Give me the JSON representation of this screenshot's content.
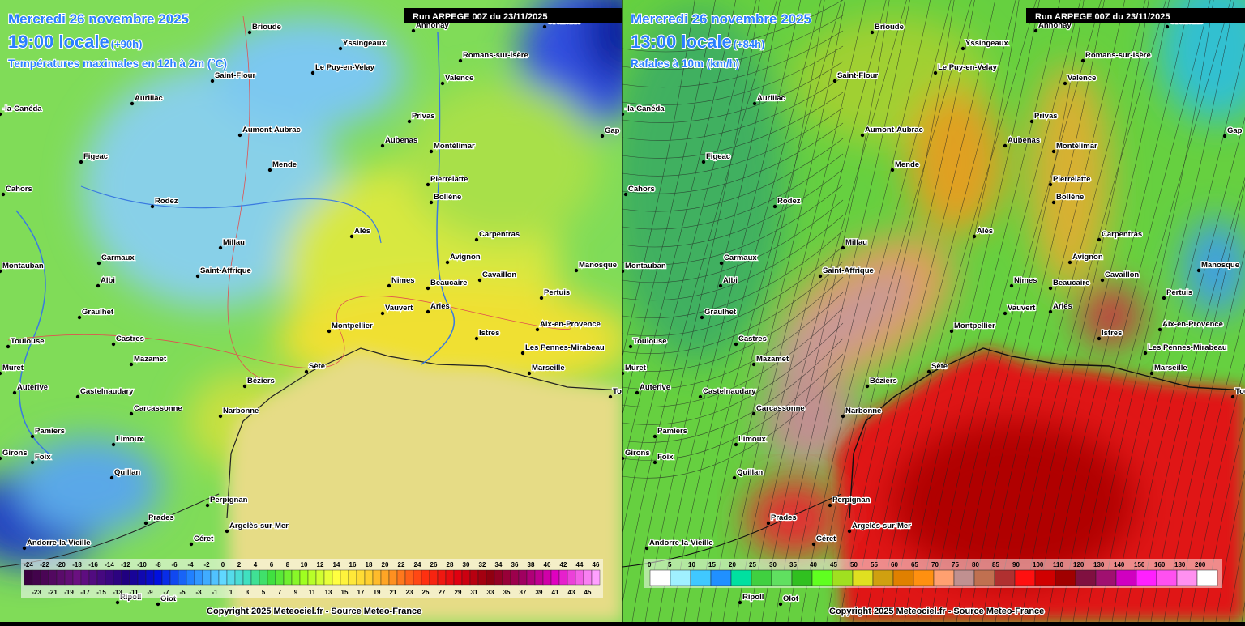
{
  "panels": [
    {
      "date": "Mercredi 26 novembre 2025",
      "time": "19:00 locale",
      "lead": "(+90h)",
      "field": "Températures maximales en 12h à 2m (°C)",
      "run": "Run ARPEGE 00Z du 23/11/2025",
      "copyright": "Copyright 2025 Meteociel.fr - Source Meteo-France",
      "legend_top": [
        -24,
        -22,
        -20,
        -18,
        -16,
        -14,
        -12,
        -10,
        -8,
        -6,
        -4,
        -2,
        0,
        2,
        4,
        6,
        8,
        10,
        12,
        14,
        16,
        18,
        20,
        22,
        24,
        26,
        28,
        30,
        32,
        34,
        36,
        38,
        40,
        42,
        44,
        46
      ],
      "legend_bottom": [
        -23,
        -21,
        -19,
        -17,
        -15,
        -13,
        -11,
        -9,
        -7,
        -5,
        -3,
        -1,
        1,
        3,
        5,
        7,
        9,
        11,
        13,
        15,
        17,
        19,
        21,
        23,
        25,
        27,
        29,
        31,
        33,
        35,
        37,
        39,
        41,
        43,
        45
      ]
    },
    {
      "date": "Mercredi 26 novembre 2025",
      "time": "13:00 locale",
      "lead": "(+84h)",
      "field": "Rafales à 10m (km/h)",
      "run": "Run ARPEGE 00Z du 23/11/2025",
      "copyright": "Copyright 2025 Meteociel.fr - Source Meteo-France",
      "legend": [
        0,
        5,
        10,
        15,
        20,
        25,
        30,
        35,
        40,
        45,
        50,
        55,
        60,
        65,
        70,
        75,
        80,
        85,
        90,
        100,
        110,
        120,
        130,
        140,
        150,
        160,
        180,
        200
      ]
    }
  ],
  "cities": [
    "Brioude",
    "Yssingeaux",
    "Annonay",
    "Grenoble",
    "Romans-sur-Isère",
    "Saint-Flour",
    "Le Puy-en-Velay",
    "Valence",
    "Aurillac",
    "-la-Canéda",
    "Privas",
    "Aumont-Aubrac",
    "Gap",
    "Aubenas",
    "Figeac",
    "Montélimar",
    "Mende",
    "Pierrelatte",
    "Cahors",
    "Rodez",
    "Bollène",
    "Alès",
    "Carpentras",
    "Millau",
    "Avignon",
    "Carmaux",
    "Manosque",
    "Montauban",
    "Saint-Affrique",
    "Albi",
    "Cavaillon",
    "Nimes",
    "Beaucaire",
    "Pertuis",
    "Graulhet",
    "Vauvert",
    "Arles",
    "Aix-en-Provence",
    "Montpellier",
    "Toulouse",
    "Castres",
    "Istres",
    "Les Pennes-Mirabeau",
    "Mazamet",
    "Sète",
    "Marseille",
    "Muret",
    "Béziers",
    "Auterive",
    "Castelnaudary",
    "Tou",
    "Carcassonne",
    "Narbonne",
    "Pamiers",
    "Limoux",
    "Girons",
    "Foix",
    "Quillan",
    "Perpignan",
    "Prades",
    "Argelès-sur-Mer",
    "Andorre-la-Vieille",
    "Céret",
    "Ripoll",
    "Olot"
  ]
}
